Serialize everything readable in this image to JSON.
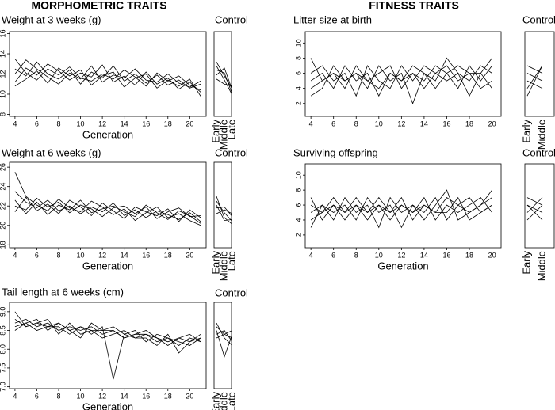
{
  "headings": [
    "MORPHOMETRIC TRAITS",
    "FITNESS TRAITS"
  ],
  "chart_data": [
    {
      "type": "line",
      "title": "Weight at 3 weeks (g)",
      "xlabel": "Generation",
      "color": "#000000",
      "x": [
        4,
        5,
        6,
        7,
        8,
        9,
        10,
        11,
        12,
        13,
        14,
        15,
        16,
        17,
        18,
        19,
        20,
        21
      ],
      "xlim": [
        3.5,
        21.5
      ],
      "xticks": [
        4,
        6,
        8,
        10,
        12,
        14,
        16,
        18,
        20
      ],
      "ylim": [
        7.8,
        16.2
      ],
      "yticks": [
        8,
        10,
        12,
        14,
        16
      ],
      "series": [
        {
          "values": [
            12.5,
            11.8,
            13.2,
            12.0,
            11.5,
            12.4,
            11.0,
            12.2,
            11.6,
            12.8,
            11.3,
            12.0,
            11.1,
            11.9,
            10.9,
            11.4,
            10.6,
            11.0
          ]
        },
        {
          "values": [
            11.2,
            12.6,
            11.9,
            13.0,
            12.3,
            11.4,
            12.1,
            11.7,
            12.9,
            11.2,
            11.8,
            10.9,
            12.2,
            11.0,
            11.6,
            10.5,
            11.2,
            10.2
          ]
        },
        {
          "values": [
            13.5,
            12.1,
            11.4,
            12.5,
            11.9,
            12.7,
            11.6,
            11.3,
            12.0,
            11.5,
            12.4,
            11.7,
            10.8,
            12.1,
            11.3,
            11.8,
            10.9,
            10.4
          ]
        },
        {
          "values": [
            10.8,
            11.5,
            12.3,
            11.1,
            12.6,
            11.8,
            12.4,
            10.9,
            11.8,
            12.2,
            10.7,
            11.6,
            12.0,
            10.6,
            11.4,
            10.8,
            11.5,
            9.8
          ]
        },
        {
          "values": [
            12.0,
            13.4,
            12.5,
            11.7,
            11.0,
            12.1,
            11.5,
            12.8,
            11.2,
            11.9,
            11.6,
            12.5,
            11.4,
            11.2,
            12.0,
            11.1,
            10.7,
            11.3
          ]
        }
      ]
    },
    {
      "type": "control",
      "title": "Control",
      "color": "#000000",
      "categories": [
        "Early",
        "Middle",
        "Late"
      ],
      "ylim": [
        7.8,
        16.2
      ],
      "series": [
        {
          "values": [
            13.2,
            11.8,
            10.5
          ]
        },
        {
          "values": [
            12.4,
            12.1,
            10.0
          ]
        },
        {
          "values": [
            11.5,
            11.0,
            10.8
          ]
        },
        {
          "values": [
            12.8,
            11.4,
            9.9
          ]
        },
        {
          "values": [
            11.9,
            12.6,
            10.4
          ]
        }
      ]
    },
    {
      "type": "line",
      "title": "Weight at 6 weeks (g)",
      "xlabel": "Generation",
      "color": "#000000",
      "x": [
        4,
        5,
        6,
        7,
        8,
        9,
        10,
        11,
        12,
        13,
        14,
        15,
        16,
        17,
        18,
        19,
        20,
        21
      ],
      "xlim": [
        3.5,
        21.5
      ],
      "xticks": [
        4,
        6,
        8,
        10,
        12,
        14,
        16,
        18,
        20
      ],
      "ylim": [
        17.7,
        26.5
      ],
      "yticks": [
        18,
        20,
        22,
        24,
        26
      ],
      "series": [
        {
          "values": [
            23.5,
            22.4,
            21.8,
            22.6,
            21.5,
            22.0,
            21.2,
            21.9,
            21.4,
            22.3,
            21.0,
            21.6,
            20.8,
            21.5,
            21.1,
            20.6,
            21.3,
            20.4
          ]
        },
        {
          "values": [
            22.0,
            21.6,
            22.8,
            21.9,
            22.4,
            21.3,
            22.1,
            21.7,
            20.9,
            21.8,
            22.0,
            21.2,
            21.9,
            20.7,
            21.4,
            21.8,
            20.9,
            21.0
          ]
        },
        {
          "values": [
            25.5,
            23.0,
            22.1,
            21.5,
            22.7,
            21.8,
            21.4,
            22.5,
            21.9,
            21.1,
            21.7,
            20.5,
            21.3,
            21.9,
            20.8,
            21.2,
            20.5,
            20.0
          ]
        },
        {
          "values": [
            21.4,
            22.9,
            21.5,
            22.2,
            21.2,
            22.6,
            21.9,
            21.0,
            22.3,
            21.5,
            20.7,
            21.9,
            21.4,
            21.0,
            21.7,
            20.4,
            21.6,
            20.8
          ]
        },
        {
          "values": [
            22.6,
            21.2,
            22.4,
            21.1,
            22.1,
            21.6,
            22.6,
            21.3,
            21.7,
            22.0,
            21.4,
            20.9,
            22.1,
            21.3,
            20.6,
            21.5,
            21.0,
            20.2
          ]
        }
      ]
    },
    {
      "type": "control",
      "title": "Control",
      "color": "#000000",
      "categories": [
        "Early",
        "Middle",
        "Late"
      ],
      "ylim": [
        17.7,
        26.5
      ],
      "series": [
        {
          "values": [
            22.5,
            21.3,
            20.4
          ]
        },
        {
          "values": [
            21.8,
            21.9,
            20.9
          ]
        },
        {
          "values": [
            23.0,
            20.8,
            20.1
          ]
        },
        {
          "values": [
            21.2,
            21.6,
            21.2
          ]
        },
        {
          "values": [
            22.1,
            20.5,
            20.6
          ]
        }
      ]
    },
    {
      "type": "line",
      "title": "Tail length at 6 weeks (cm)",
      "xlabel": "Generation",
      "color": "#000000",
      "x": [
        4,
        5,
        6,
        7,
        8,
        9,
        10,
        11,
        12,
        13,
        14,
        15,
        16,
        17,
        18,
        19,
        20,
        21
      ],
      "xlim": [
        3.5,
        21.5
      ],
      "xticks": [
        4,
        6,
        8,
        10,
        12,
        14,
        16,
        18,
        20
      ],
      "ylim": [
        6.95,
        9.25
      ],
      "yticks": [
        {
          "value": 7,
          "label": "7.0"
        },
        7.5,
        {
          "value": 8,
          "label": "8.0"
        },
        8.5,
        {
          "value": 9,
          "label": "9.0"
        }
      ],
      "series": [
        {
          "values": [
            8.7,
            8.8,
            8.6,
            8.7,
            8.5,
            8.6,
            8.5,
            8.6,
            8.4,
            8.5,
            8.3,
            8.4,
            8.4,
            8.3,
            8.2,
            8.3,
            8.4,
            8.2
          ]
        },
        {
          "values": [
            8.6,
            8.7,
            8.8,
            8.5,
            8.7,
            8.5,
            8.6,
            8.4,
            8.6,
            7.2,
            8.4,
            8.3,
            8.4,
            8.2,
            8.3,
            8.2,
            8.1,
            8.3
          ]
        },
        {
          "values": [
            8.8,
            8.6,
            8.7,
            8.8,
            8.4,
            8.7,
            8.4,
            8.5,
            8.5,
            8.6,
            8.4,
            8.5,
            8.2,
            8.4,
            8.3,
            8.1,
            8.3,
            8.2
          ]
        },
        {
          "values": [
            8.5,
            8.7,
            8.5,
            8.6,
            8.6,
            8.4,
            8.6,
            8.5,
            8.3,
            8.4,
            8.5,
            8.3,
            8.3,
            8.1,
            8.4,
            7.9,
            8.2,
            8.3
          ]
        },
        {
          "values": [
            9.0,
            8.6,
            8.7,
            8.6,
            8.7,
            8.5,
            8.3,
            8.7,
            8.5,
            8.5,
            8.3,
            8.4,
            8.5,
            8.3,
            8.1,
            8.3,
            8.2,
            8.4
          ]
        }
      ]
    },
    {
      "type": "control",
      "title": "Control",
      "color": "#000000",
      "categories": [
        "Early",
        "Middle",
        "Late"
      ],
      "ylim": [
        6.95,
        9.25
      ],
      "series": [
        {
          "values": [
            8.6,
            8.4,
            8.3
          ]
        },
        {
          "values": [
            8.4,
            8.5,
            8.2
          ]
        },
        {
          "values": [
            8.5,
            7.8,
            8.4
          ]
        },
        {
          "values": [
            8.7,
            8.3,
            8.1
          ]
        },
        {
          "values": [
            8.3,
            8.4,
            8.5
          ]
        }
      ]
    },
    {
      "type": "line",
      "title": "Litter size at birth",
      "color": "#000000",
      "x": [
        4,
        5,
        6,
        7,
        8,
        9,
        10,
        11,
        12,
        13,
        14,
        15,
        16,
        17,
        18,
        19,
        20
      ],
      "xlim": [
        3.5,
        20.8
      ],
      "xticks": [
        4,
        6,
        8,
        10,
        12,
        14,
        16,
        18,
        20
      ],
      "ylim": [
        0.3,
        11.5
      ],
      "yticks": [
        2,
        4,
        6,
        8,
        10
      ],
      "series": [
        {
          "values": [
            5,
            6,
            4,
            7,
            5,
            6,
            3,
            6,
            5,
            7,
            6,
            5,
            8,
            6,
            5,
            7,
            6
          ]
        },
        {
          "values": [
            8,
            5,
            6,
            4,
            7,
            5,
            6,
            7,
            4,
            6,
            5,
            7,
            6,
            4,
            7,
            5,
            7
          ]
        },
        {
          "values": [
            3,
            4,
            7,
            5,
            6,
            4,
            7,
            5,
            6,
            2,
            6,
            4,
            6,
            7,
            6,
            4,
            5
          ]
        },
        {
          "values": [
            6,
            7,
            5,
            6,
            3,
            7,
            5,
            4,
            7,
            5,
            7,
            6,
            5,
            6,
            3,
            6,
            8
          ]
        },
        {
          "values": [
            4,
            5,
            6,
            5,
            6,
            5,
            4,
            6,
            5,
            6,
            4,
            6,
            7,
            5,
            6,
            6,
            4
          ]
        }
      ]
    },
    {
      "type": "control",
      "title": "Control",
      "color": "#000000",
      "categories": [
        "Early",
        "Middle"
      ],
      "ylim": [
        0.3,
        11.5
      ],
      "series": [
        {
          "values": [
            4,
            7
          ]
        },
        {
          "values": [
            6,
            5
          ]
        },
        {
          "values": [
            7,
            6
          ]
        },
        {
          "values": [
            5,
            4
          ]
        },
        {
          "values": [
            3,
            7
          ]
        }
      ]
    },
    {
      "type": "line",
      "title": "Surviving offspring",
      "xlabel": "Generation",
      "color": "#000000",
      "x": [
        4,
        5,
        6,
        7,
        8,
        9,
        10,
        11,
        12,
        13,
        14,
        15,
        16,
        17,
        18,
        19,
        20
      ],
      "xlim": [
        3.5,
        20.8
      ],
      "xticks": [
        4,
        6,
        8,
        10,
        12,
        14,
        16,
        18,
        20
      ],
      "ylim": [
        0.3,
        11.5
      ],
      "yticks": [
        2,
        4,
        6,
        8,
        10
      ],
      "series": [
        {
          "values": [
            6,
            5,
            7,
            5,
            6,
            4,
            6,
            5,
            7,
            4,
            6,
            5,
            7,
            6,
            5,
            6,
            7
          ]
        },
        {
          "values": [
            3,
            6,
            5,
            6,
            4,
            7,
            5,
            6,
            3,
            6,
            5,
            7,
            4,
            6,
            7,
            5,
            6
          ]
        },
        {
          "values": [
            7,
            4,
            6,
            5,
            7,
            5,
            6,
            4,
            6,
            5,
            7,
            4,
            6,
            5,
            6,
            7,
            5
          ]
        },
        {
          "values": [
            5,
            6,
            4,
            7,
            5,
            6,
            3,
            7,
            5,
            6,
            4,
            6,
            8,
            4,
            5,
            6,
            8
          ]
        },
        {
          "values": [
            4,
            5,
            6,
            4,
            6,
            5,
            7,
            5,
            6,
            5,
            6,
            5,
            5,
            7,
            4,
            5,
            6
          ]
        }
      ]
    },
    {
      "type": "control",
      "title": "Control",
      "color": "#000000",
      "categories": [
        "Early",
        "Middle"
      ],
      "ylim": [
        0.3,
        11.5
      ],
      "series": [
        {
          "values": [
            5,
            7
          ]
        },
        {
          "values": [
            7,
            6
          ]
        },
        {
          "values": [
            6,
            4
          ]
        },
        {
          "values": [
            4,
            6
          ]
        },
        {
          "values": [
            6,
            5
          ]
        }
      ]
    }
  ]
}
